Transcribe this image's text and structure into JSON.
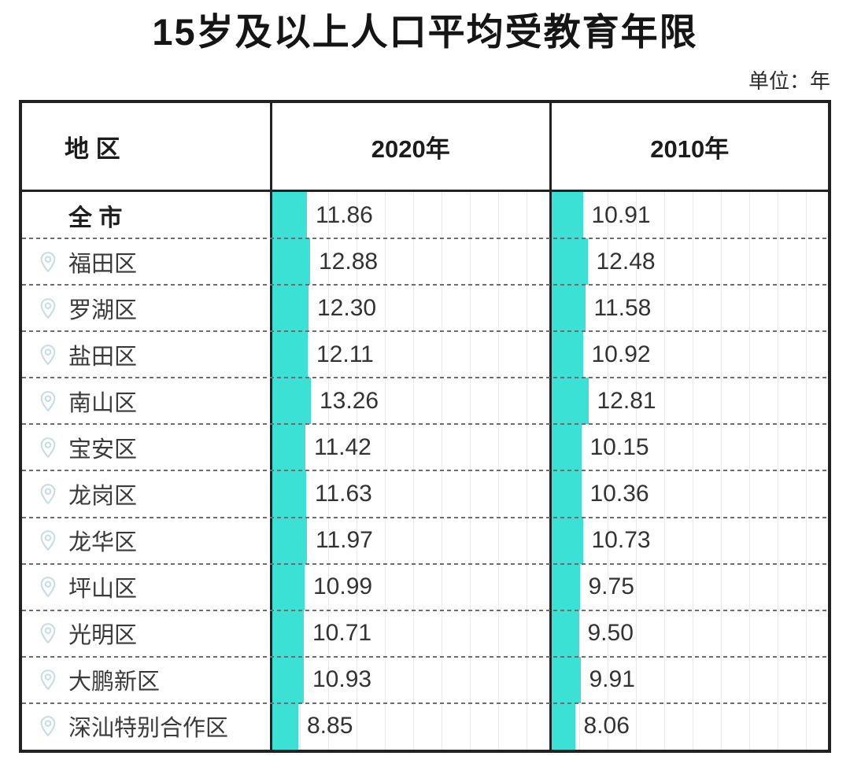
{
  "title": "15岁及以上人口平均受教育年限",
  "unit_label": "单位：年",
  "accent_color": "#3ce1d6",
  "pin_color": "#c7dfe3",
  "table": {
    "region_header": "地  区",
    "col_2020": "2020年",
    "col_2010": "2010年"
  },
  "rows": [
    {
      "name": "全 市",
      "v2020": "11.86",
      "v2010": "10.91",
      "pin": false,
      "emphasis": true
    },
    {
      "name": "福田区",
      "v2020": "12.88",
      "v2010": "12.48",
      "pin": true,
      "emphasis": false
    },
    {
      "name": "罗湖区",
      "v2020": "12.30",
      "v2010": "11.58",
      "pin": true,
      "emphasis": false
    },
    {
      "name": "盐田区",
      "v2020": "12.11",
      "v2010": "10.92",
      "pin": true,
      "emphasis": false
    },
    {
      "name": "南山区",
      "v2020": "13.26",
      "v2010": "12.81",
      "pin": true,
      "emphasis": false
    },
    {
      "name": "宝安区",
      "v2020": "11.42",
      "v2010": "10.15",
      "pin": true,
      "emphasis": false
    },
    {
      "name": "龙岗区",
      "v2020": "11.63",
      "v2010": "10.36",
      "pin": true,
      "emphasis": false
    },
    {
      "name": "龙华区",
      "v2020": "11.97",
      "v2010": "10.73",
      "pin": true,
      "emphasis": false
    },
    {
      "name": "坪山区",
      "v2020": "10.99",
      "v2010": "9.75",
      "pin": true,
      "emphasis": false
    },
    {
      "name": "光明区",
      "v2020": "10.71",
      "v2010": "9.50",
      "pin": true,
      "emphasis": false
    },
    {
      "name": "大鹏新区",
      "v2020": "10.93",
      "v2010": "9.91",
      "pin": true,
      "emphasis": false
    },
    {
      "name": "深汕特别合作区",
      "v2020": "8.85",
      "v2010": "8.06",
      "pin": true,
      "emphasis": false
    }
  ],
  "chart_data": {
    "type": "bar",
    "title": "15岁及以上人口平均受教育年限",
    "unit": "年",
    "categories": [
      "全市",
      "福田区",
      "罗湖区",
      "盐田区",
      "南山区",
      "宝安区",
      "龙岗区",
      "龙华区",
      "坪山区",
      "光明区",
      "大鹏新区",
      "深汕特别合作区"
    ],
    "series": [
      {
        "name": "2020年",
        "values": [
          11.86,
          12.88,
          12.3,
          12.11,
          13.26,
          11.42,
          11.63,
          11.97,
          10.99,
          10.71,
          10.93,
          8.85
        ]
      },
      {
        "name": "2010年",
        "values": [
          10.91,
          12.48,
          11.58,
          10.92,
          12.81,
          10.15,
          10.36,
          10.73,
          9.75,
          9.5,
          9.91,
          8.06
        ]
      }
    ],
    "xlabel": "",
    "ylabel": "年",
    "orientation": "horizontal",
    "legend_position": "column-headers",
    "grid": "faint-vertical"
  }
}
